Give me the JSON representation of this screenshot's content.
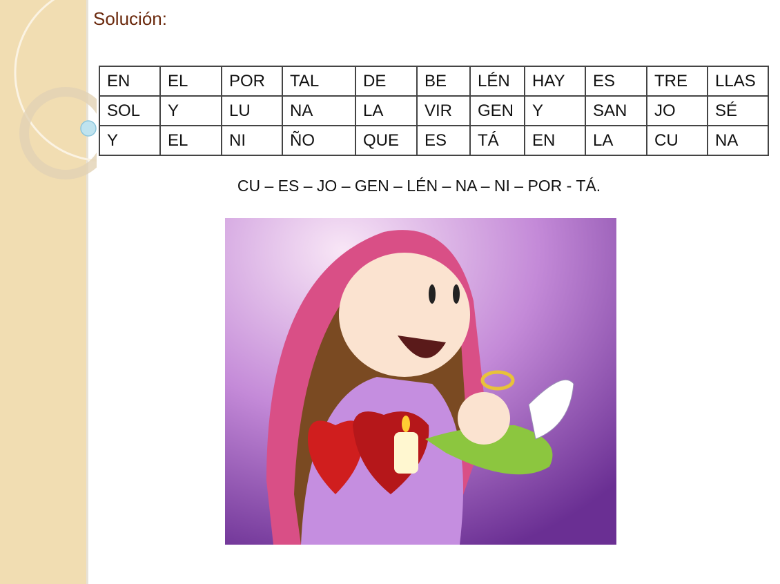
{
  "title": "Solución:",
  "grid": [
    [
      "EN",
      "EL",
      "POR",
      "TAL",
      "DE",
      "BE",
      "LÉN",
      "HAY",
      "ES",
      "TRE",
      "LLAS"
    ],
    [
      "SOL",
      "Y",
      "LU",
      "NA",
      "LA",
      "VIR",
      "GEN",
      "Y",
      "SAN",
      "JO",
      "SÉ"
    ],
    [
      "Y",
      "EL",
      "NI",
      "ÑO",
      "QUE",
      "ES",
      "TÁ",
      "EN",
      "LA",
      "CU",
      "NA"
    ]
  ],
  "answer": "CU – ES – JO – GEN – LÉN – NA – NI – POR - TÁ.",
  "colors": {
    "title": "#6b2a0e",
    "sidebar": "#f1ddb2",
    "picture_bg": "#9b59c9"
  }
}
